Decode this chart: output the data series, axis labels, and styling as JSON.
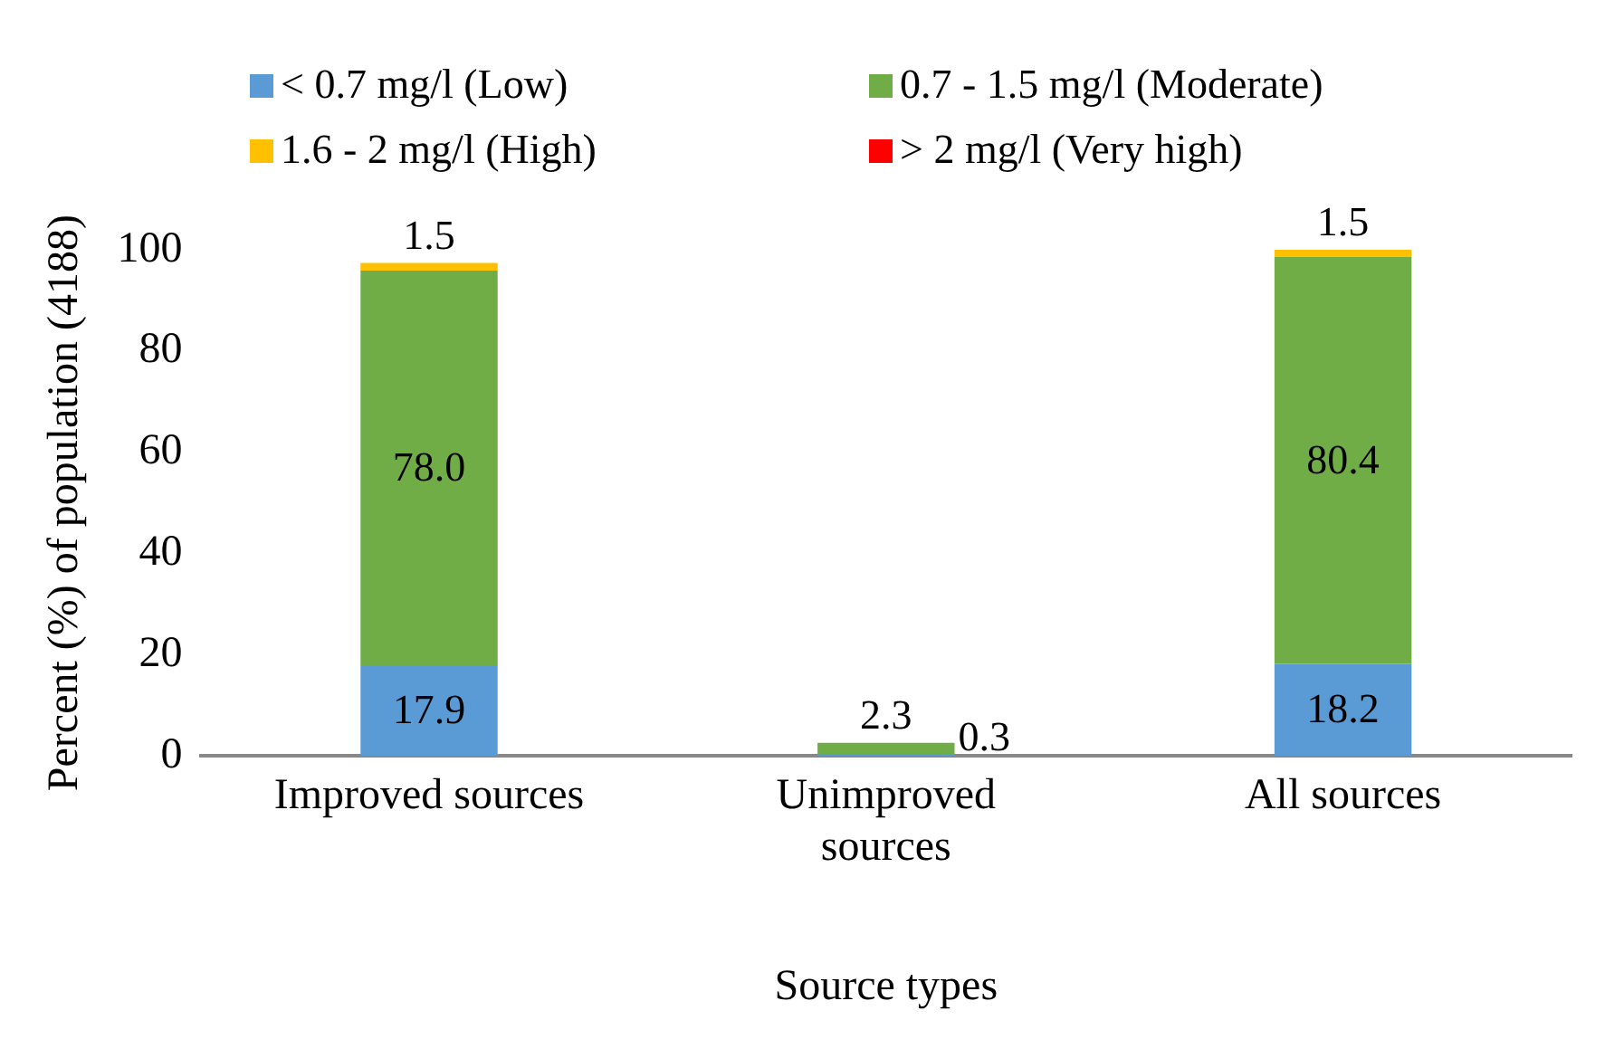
{
  "chart_data": {
    "type": "bar",
    "stacked": true,
    "categories": [
      "Improved sources",
      "Unimproved sources",
      "All sources"
    ],
    "series": [
      {
        "name": "< 0.7 mg/l (Low)",
        "color": "#5b9bd5",
        "values": [
          17.9,
          0.3,
          18.2
        ],
        "value_labels": [
          "17.9",
          "0.3",
          "18.2"
        ]
      },
      {
        "name": "0.7 - 1.5 mg/l (Moderate)",
        "color": "#70ad47",
        "values": [
          78.0,
          2.3,
          80.4
        ],
        "value_labels": [
          "78.0",
          "2.3",
          "80.4"
        ]
      },
      {
        "name": "1.6 - 2 mg/l (High)",
        "color": "#ffc000",
        "values": [
          1.5,
          0,
          1.5
        ],
        "value_labels": [
          "1.5",
          null,
          "1.5"
        ]
      },
      {
        "name": "> 2 mg/l (Very high)",
        "color": "#ff0000",
        "values": [
          0,
          0,
          0
        ]
      }
    ],
    "ylim": [
      0,
      100
    ],
    "yticks": [
      0,
      20,
      40,
      60,
      80,
      100
    ],
    "ylabel": "Percent (%) of population (4188)",
    "xlabel": "Source types",
    "legend": "top",
    "grid": false
  }
}
